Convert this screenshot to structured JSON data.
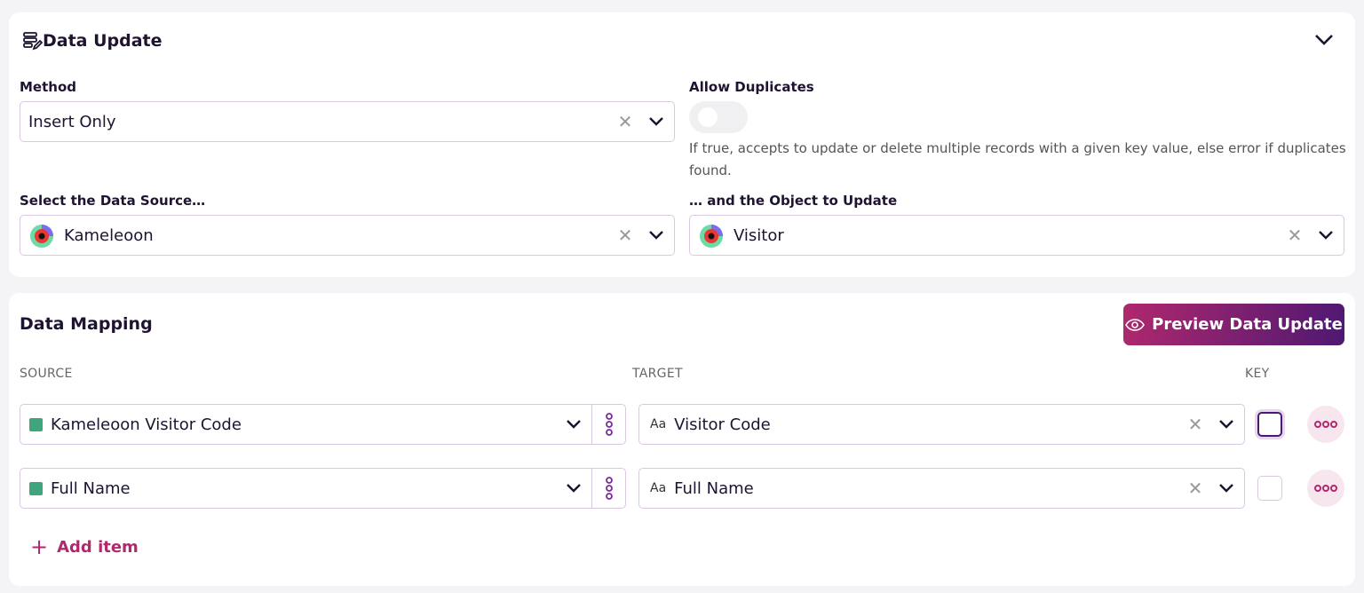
{
  "data_update": {
    "title": "Data Update",
    "method_label": "Method",
    "method_value": "Insert Only",
    "allow_duplicates_label": "Allow Duplicates",
    "allow_duplicates_on": false,
    "allow_duplicates_hint": "If true, accepts to update or delete multiple records with a given key value, else error if duplicates found.",
    "source_label": "Select the Data Source…",
    "source_value": "Kameleoon",
    "object_label": "… and the Object to Update",
    "object_value": "Visitor"
  },
  "data_mapping": {
    "title": "Data Mapping",
    "preview_button": "Preview Data Update",
    "col_source": "SOURCE",
    "col_target": "TARGET",
    "col_key": "KEY",
    "rows": [
      {
        "source": "Kameleoon Visitor Code",
        "target": "Visitor Code",
        "key": false
      },
      {
        "source": "Full Name",
        "target": "Full Name",
        "key": false
      }
    ],
    "add_item": "Add item"
  },
  "colors": {
    "accent": "#b0286e",
    "accent_end": "#4e1872",
    "source_dot": "#3fa57a"
  }
}
